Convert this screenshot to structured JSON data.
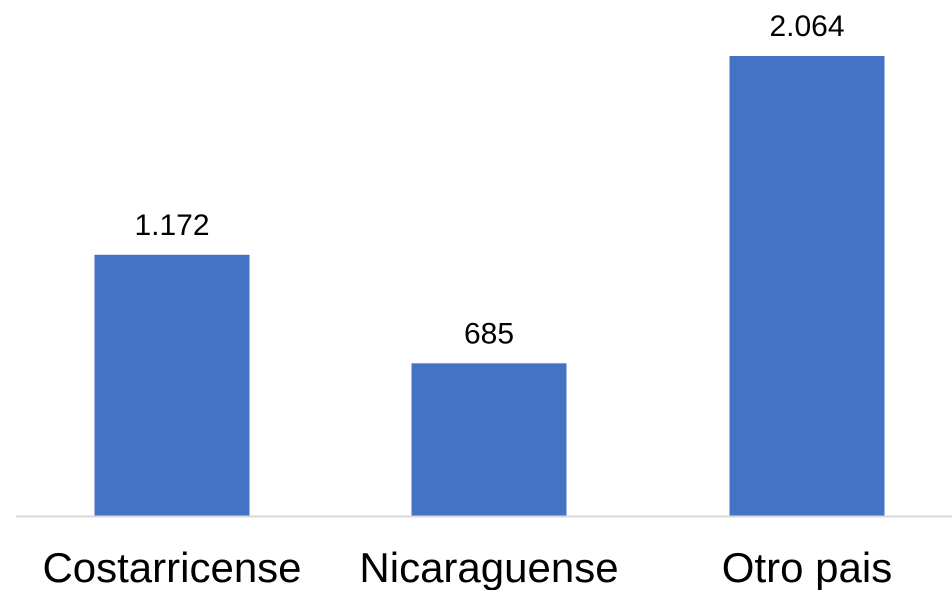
{
  "chart_data": {
    "type": "bar",
    "categories": [
      "Costarricense",
      "Nicaraguense",
      "Otro pais"
    ],
    "values": [
      1172,
      685,
      2064
    ],
    "value_labels": [
      "1.172",
      "685",
      "2.064"
    ],
    "title": "",
    "xlabel": "",
    "ylabel": "",
    "ylim": [
      0,
      2064
    ],
    "grid": false,
    "legend": "none",
    "colors": {
      "bar": "#4472C4",
      "axis": "#D9D9D9",
      "text": "#000000"
    }
  }
}
